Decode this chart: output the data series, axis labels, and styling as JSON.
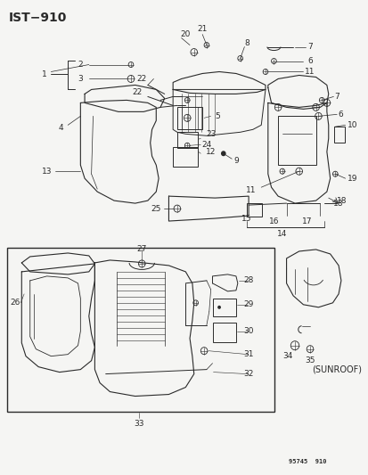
{
  "title": "IST−910",
  "subtitle": "95745  910",
  "sunroof_label": "(SUNROOF)",
  "background_color": "#f5f5f3",
  "line_color": "#2a2a2a",
  "title_fontsize": 10,
  "label_fontsize": 6.5,
  "figsize": [
    4.14,
    5.33
  ],
  "dpi": 100
}
